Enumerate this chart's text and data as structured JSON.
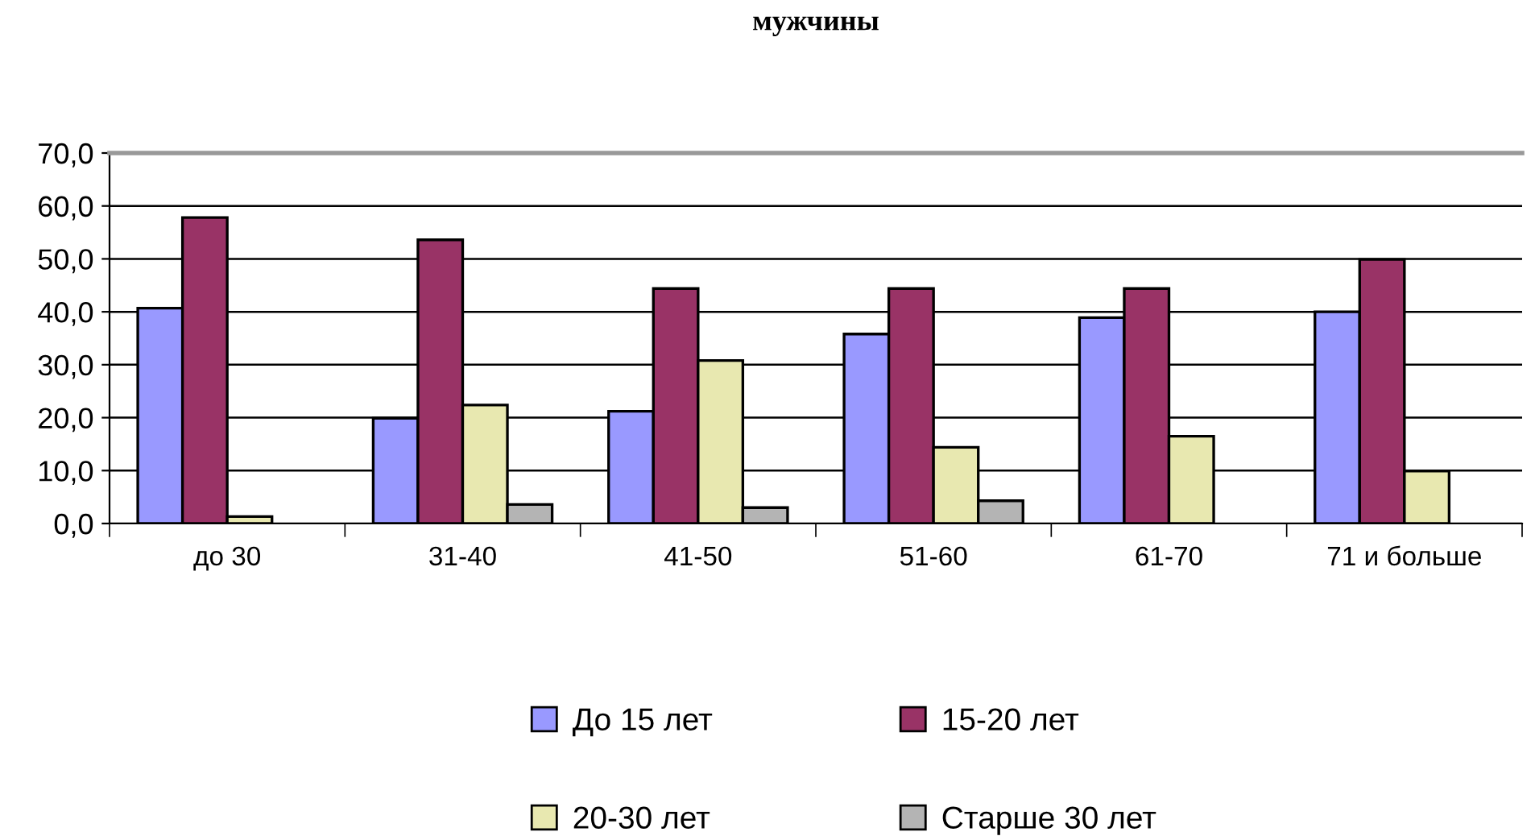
{
  "chart_data": {
    "type": "bar",
    "title": "мужчины",
    "categories": [
      "до 30",
      "31-40",
      "41-50",
      "51-60",
      "61-70",
      "71 и больше"
    ],
    "series": [
      {
        "name": "До 15 лет",
        "color": "#9999ff",
        "values": [
          40.7,
          19.9,
          21.2,
          35.8,
          38.9,
          40.0
        ]
      },
      {
        "name": "15-20 лет",
        "color": "#993366",
        "values": [
          57.8,
          53.6,
          44.4,
          44.4,
          44.4,
          49.9
        ]
      },
      {
        "name": "20-30 лет",
        "color": "#e8e8b0",
        "values": [
          1.3,
          22.4,
          30.8,
          14.4,
          16.5,
          9.9
        ]
      },
      {
        "name": "Старше 30 лет",
        "color": "#b4b4b4",
        "values": [
          null,
          3.6,
          3.0,
          4.3,
          null,
          null
        ]
      }
    ],
    "ylim": [
      0,
      70
    ],
    "yticks": [
      {
        "value": 0,
        "label": "0,0"
      },
      {
        "value": 10,
        "label": "10,0"
      },
      {
        "value": 20,
        "label": "20,0"
      },
      {
        "value": 30,
        "label": "30,0"
      },
      {
        "value": 40,
        "label": "40,0"
      },
      {
        "value": 50,
        "label": "50,0"
      },
      {
        "value": 60,
        "label": "60,0"
      },
      {
        "value": 70,
        "label": "70,0"
      }
    ],
    "grid": "y",
    "legend": "bottom"
  }
}
